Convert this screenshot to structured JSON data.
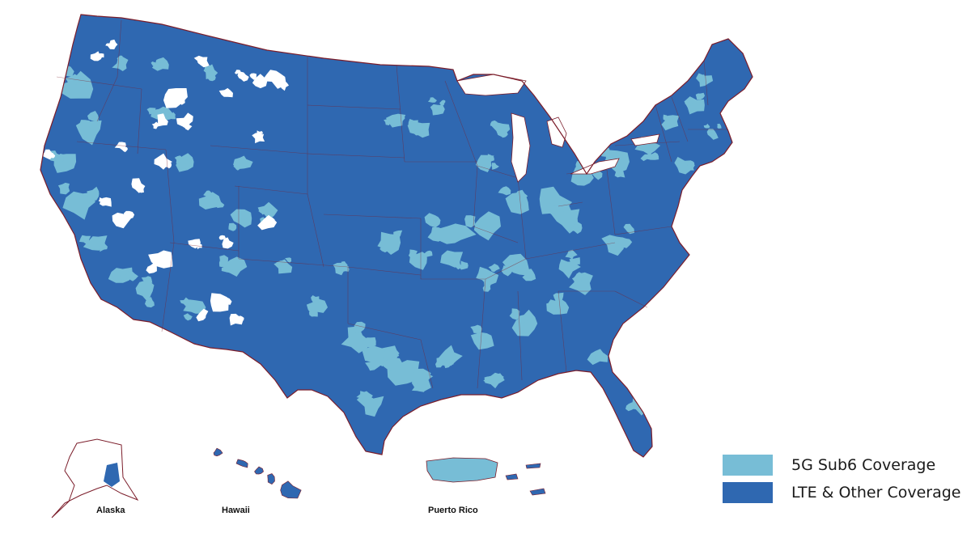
{
  "colors": {
    "lte": "#2f68b1",
    "fiveg": "#77bdd6",
    "border": "#7b1d2a",
    "background": "#ffffff"
  },
  "legend": {
    "items": [
      {
        "label": "5G Sub6 Coverage",
        "color": "#77bdd6"
      },
      {
        "label": "LTE & Other Coverage",
        "color": "#2f68b1"
      }
    ]
  },
  "insets": {
    "alaska": "Alaska",
    "hawaii": "Hawaii",
    "puerto_rico": "Puerto Rico"
  }
}
